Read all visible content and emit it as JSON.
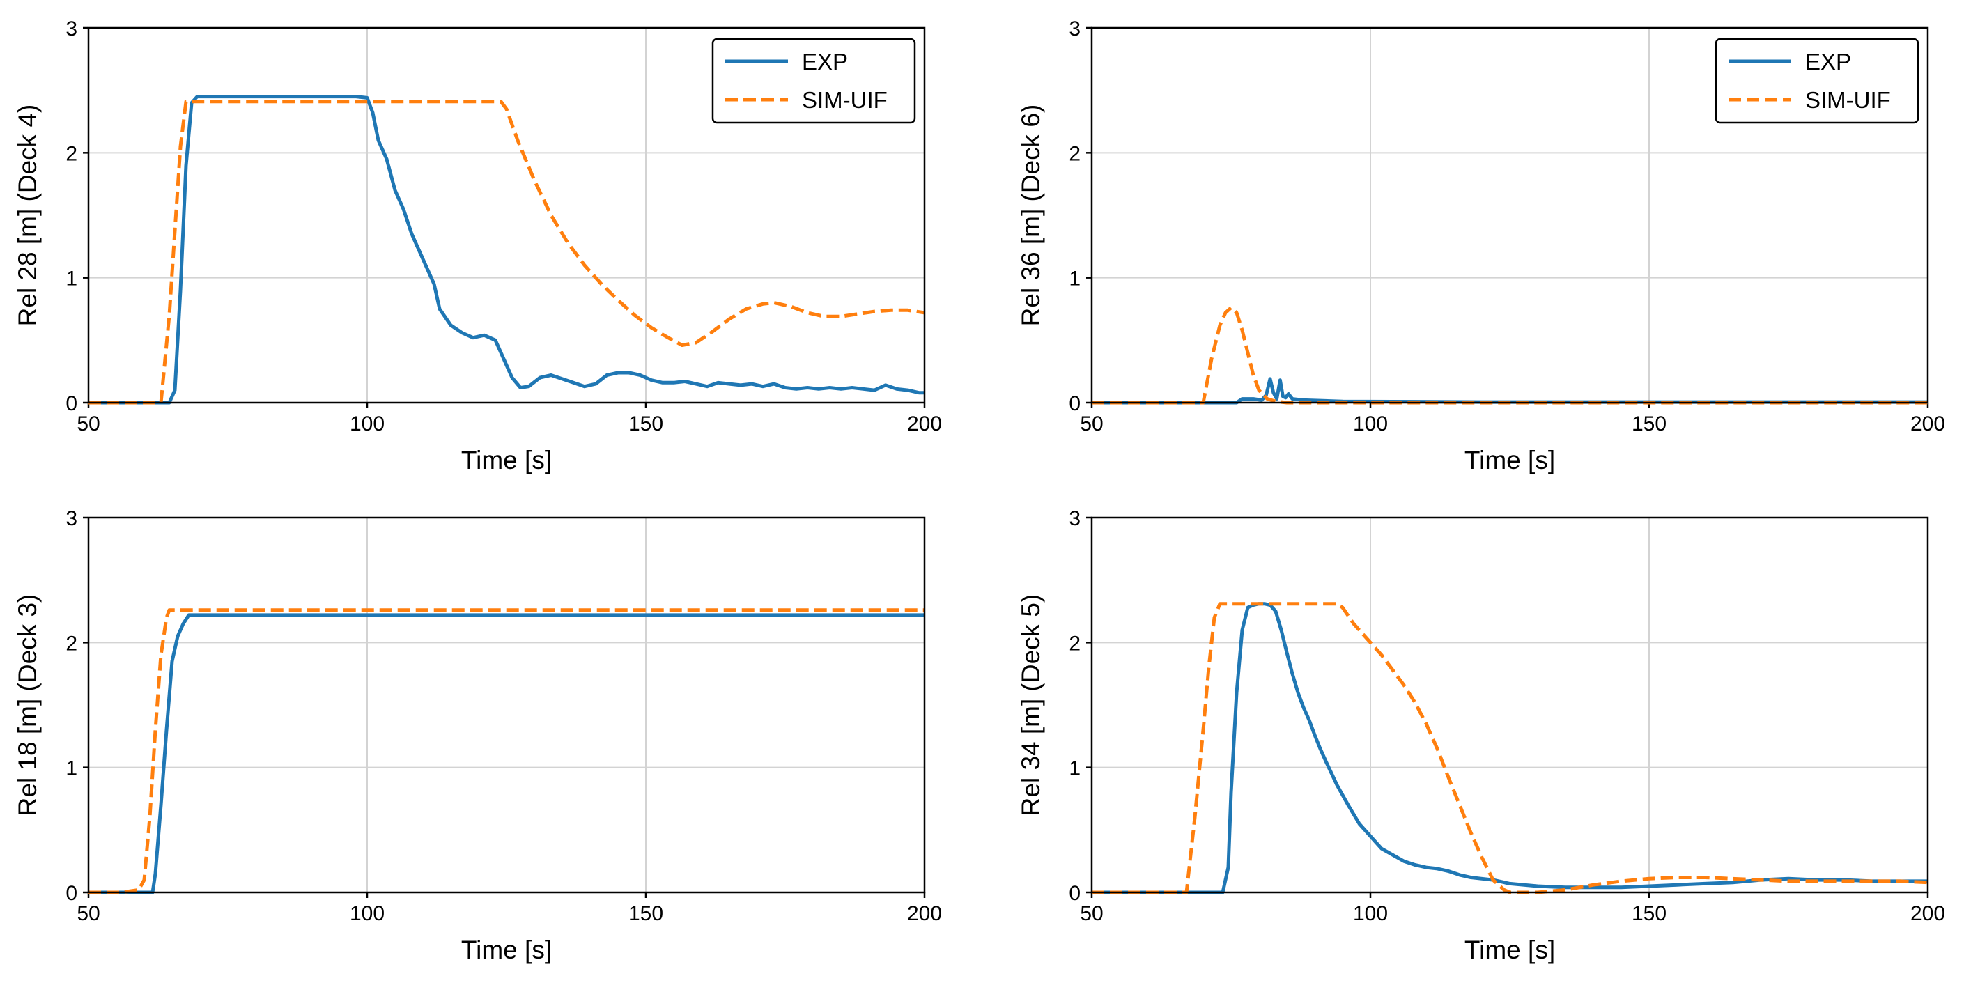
{
  "colors": {
    "exp": "#1f77b4",
    "sim": "#ff7f0e"
  },
  "chart_data": [
    {
      "type": "line",
      "id": "rel28",
      "title": "",
      "xlabel": "Time [s]",
      "ylabel": "Rel 28 [m] (Deck 4)",
      "xlim": [
        50,
        200
      ],
      "ylim": [
        0,
        3
      ],
      "xticks": [
        "50",
        "100",
        "150",
        "200"
      ],
      "yticks": [
        "0",
        "1",
        "2",
        "3"
      ],
      "grid": true,
      "legend": {
        "position": "top-right",
        "entries": [
          "EXP",
          "SIM-UIF"
        ]
      },
      "series": [
        {
          "name": "EXP",
          "style": "solid",
          "color": "#1f77b4",
          "x": [
            50,
            64.5,
            65.5,
            66.5,
            67.5,
            68.5,
            69.5,
            80,
            90,
            98,
            100,
            101,
            102,
            103.5,
            105,
            106.5,
            108,
            109.5,
            111,
            112,
            113,
            115,
            117,
            119,
            121,
            123,
            125,
            126,
            127.5,
            129,
            131,
            133,
            135,
            137,
            139,
            141,
            143,
            145,
            147,
            149,
            151,
            153,
            155,
            157,
            159,
            161,
            163,
            165,
            167,
            169,
            171,
            173,
            175,
            177,
            179,
            181,
            183,
            185,
            187,
            189,
            191,
            193,
            195,
            197,
            199,
            200
          ],
          "values": [
            0,
            0,
            0.1,
            0.9,
            1.9,
            2.4,
            2.45,
            2.45,
            2.45,
            2.45,
            2.44,
            2.32,
            2.1,
            1.95,
            1.7,
            1.55,
            1.35,
            1.2,
            1.05,
            0.95,
            0.75,
            0.62,
            0.56,
            0.52,
            0.54,
            0.5,
            0.3,
            0.2,
            0.12,
            0.13,
            0.2,
            0.22,
            0.19,
            0.16,
            0.13,
            0.15,
            0.22,
            0.24,
            0.24,
            0.22,
            0.18,
            0.16,
            0.16,
            0.17,
            0.15,
            0.13,
            0.16,
            0.15,
            0.14,
            0.15,
            0.13,
            0.15,
            0.12,
            0.11,
            0.12,
            0.11,
            0.12,
            0.11,
            0.12,
            0.11,
            0.1,
            0.14,
            0.11,
            0.1,
            0.08,
            0.08
          ]
        },
        {
          "name": "SIM-UIF",
          "style": "dashed",
          "color": "#ff7f0e",
          "x": [
            50,
            63,
            64.5,
            66.5,
            67.5,
            100,
            124,
            125,
            127,
            130,
            133,
            136,
            139,
            142,
            145,
            148,
            151,
            154,
            156.5,
            159,
            162,
            165,
            168,
            171,
            173,
            176,
            179,
            182,
            185,
            188,
            191,
            194,
            197,
            200
          ],
          "values": [
            0,
            0,
            0.7,
            2.05,
            2.41,
            2.41,
            2.41,
            2.35,
            2.1,
            1.78,
            1.5,
            1.28,
            1.1,
            0.95,
            0.82,
            0.7,
            0.6,
            0.52,
            0.46,
            0.48,
            0.57,
            0.67,
            0.75,
            0.79,
            0.8,
            0.77,
            0.72,
            0.69,
            0.69,
            0.71,
            0.73,
            0.74,
            0.74,
            0.72
          ]
        }
      ]
    },
    {
      "type": "line",
      "id": "rel36",
      "title": "",
      "xlabel": "Time [s]",
      "ylabel": "Rel 36 [m] (Deck 6)",
      "xlim": [
        50,
        200
      ],
      "ylim": [
        0,
        3
      ],
      "xticks": [
        "50",
        "100",
        "150",
        "200"
      ],
      "yticks": [
        "0",
        "1",
        "2",
        "3"
      ],
      "grid": true,
      "legend": {
        "position": "top-right",
        "entries": [
          "EXP",
          "SIM-UIF"
        ]
      },
      "series": [
        {
          "name": "EXP",
          "style": "solid",
          "color": "#1f77b4",
          "x": [
            50,
            76,
            77,
            79,
            80.5,
            81.3,
            82,
            82.6,
            83.2,
            83.8,
            84.3,
            84.8,
            85.3,
            86,
            88,
            95,
            120,
            200
          ],
          "values": [
            0,
            0,
            0.03,
            0.03,
            0.02,
            0.06,
            0.19,
            0.08,
            0.03,
            0.18,
            0.05,
            0.04,
            0.07,
            0.03,
            0.02,
            0.01,
            0.005,
            0.005
          ]
        },
        {
          "name": "SIM-UIF",
          "style": "dashed",
          "color": "#ff7f0e",
          "x": [
            50,
            70,
            71.5,
            73,
            74,
            75,
            76,
            77,
            78,
            79,
            80,
            81.5,
            83,
            85,
            200
          ],
          "values": [
            0,
            0,
            0.35,
            0.62,
            0.72,
            0.76,
            0.72,
            0.58,
            0.4,
            0.22,
            0.1,
            0.03,
            0.01,
            0,
            0
          ]
        }
      ]
    },
    {
      "type": "line",
      "id": "rel18",
      "title": "",
      "xlabel": "Time [s]",
      "ylabel": "Rel 18 [m] (Deck 3)",
      "xlim": [
        50,
        200
      ],
      "ylim": [
        0,
        3
      ],
      "xticks": [
        "50",
        "100",
        "150",
        "200"
      ],
      "yticks": [
        "0",
        "1",
        "2",
        "3"
      ],
      "grid": true,
      "legend": null,
      "series": [
        {
          "name": "EXP",
          "style": "solid",
          "color": "#1f77b4",
          "x": [
            50,
            61.5,
            62,
            63,
            64,
            65,
            66,
            67,
            68,
            200
          ],
          "values": [
            0,
            0,
            0.15,
            0.7,
            1.3,
            1.85,
            2.05,
            2.15,
            2.22,
            2.22
          ]
        },
        {
          "name": "SIM-UIF",
          "style": "dashed",
          "color": "#ff7f0e",
          "x": [
            50,
            56,
            59,
            60,
            61,
            62,
            63,
            64,
            64.5,
            200
          ],
          "values": [
            0,
            0,
            0.02,
            0.1,
            0.6,
            1.3,
            1.9,
            2.2,
            2.26,
            2.26
          ]
        }
      ]
    },
    {
      "type": "line",
      "id": "rel34",
      "title": "",
      "xlabel": "Time [s]",
      "ylabel": "Rel 34 [m] (Deck 5)",
      "xlim": [
        50,
        200
      ],
      "ylim": [
        0,
        3
      ],
      "xticks": [
        "50",
        "100",
        "150",
        "200"
      ],
      "yticks": [
        "0",
        "1",
        "2",
        "3"
      ],
      "grid": true,
      "legend": null,
      "series": [
        {
          "name": "EXP",
          "style": "solid",
          "color": "#1f77b4",
          "x": [
            50,
            73.5,
            74.5,
            75,
            76,
            77,
            78,
            79,
            80,
            81,
            82,
            83,
            84,
            85,
            86,
            87,
            88,
            89,
            90,
            91,
            92,
            94,
            96,
            98,
            100,
            102,
            104,
            106,
            108,
            110,
            112,
            114,
            116,
            118,
            120,
            122,
            125,
            130,
            135,
            140,
            145,
            150,
            155,
            160,
            165,
            170,
            175,
            180,
            185,
            190,
            195,
            200
          ],
          "values": [
            0,
            0,
            0.2,
            0.8,
            1.6,
            2.1,
            2.28,
            2.3,
            2.31,
            2.31,
            2.3,
            2.25,
            2.1,
            1.92,
            1.75,
            1.6,
            1.48,
            1.38,
            1.26,
            1.15,
            1.05,
            0.86,
            0.7,
            0.55,
            0.45,
            0.35,
            0.3,
            0.25,
            0.22,
            0.2,
            0.19,
            0.17,
            0.14,
            0.12,
            0.11,
            0.1,
            0.07,
            0.05,
            0.04,
            0.04,
            0.04,
            0.05,
            0.06,
            0.07,
            0.08,
            0.1,
            0.11,
            0.1,
            0.1,
            0.09,
            0.09,
            0.09
          ]
        },
        {
          "name": "SIM-UIF",
          "style": "dashed",
          "color": "#ff7f0e",
          "x": [
            50,
            67,
            68.5,
            70,
            71,
            72,
            73,
            85,
            90,
            94,
            95,
            97,
            100,
            102,
            104,
            106,
            108,
            110,
            112,
            114,
            116,
            118,
            120,
            122,
            124,
            125,
            127,
            130,
            135,
            140,
            145,
            150,
            155,
            160,
            165,
            170,
            175,
            180,
            185,
            190,
            195,
            200
          ],
          "values": [
            0,
            0,
            0.6,
            1.3,
            1.8,
            2.2,
            2.31,
            2.31,
            2.31,
            2.31,
            2.28,
            2.15,
            2.0,
            1.9,
            1.78,
            1.66,
            1.52,
            1.35,
            1.15,
            0.92,
            0.7,
            0.48,
            0.28,
            0.1,
            0.02,
            0,
            0,
            0,
            0.02,
            0.06,
            0.09,
            0.11,
            0.12,
            0.12,
            0.11,
            0.1,
            0.09,
            0.09,
            0.09,
            0.09,
            0.09,
            0.08
          ]
        }
      ]
    }
  ]
}
